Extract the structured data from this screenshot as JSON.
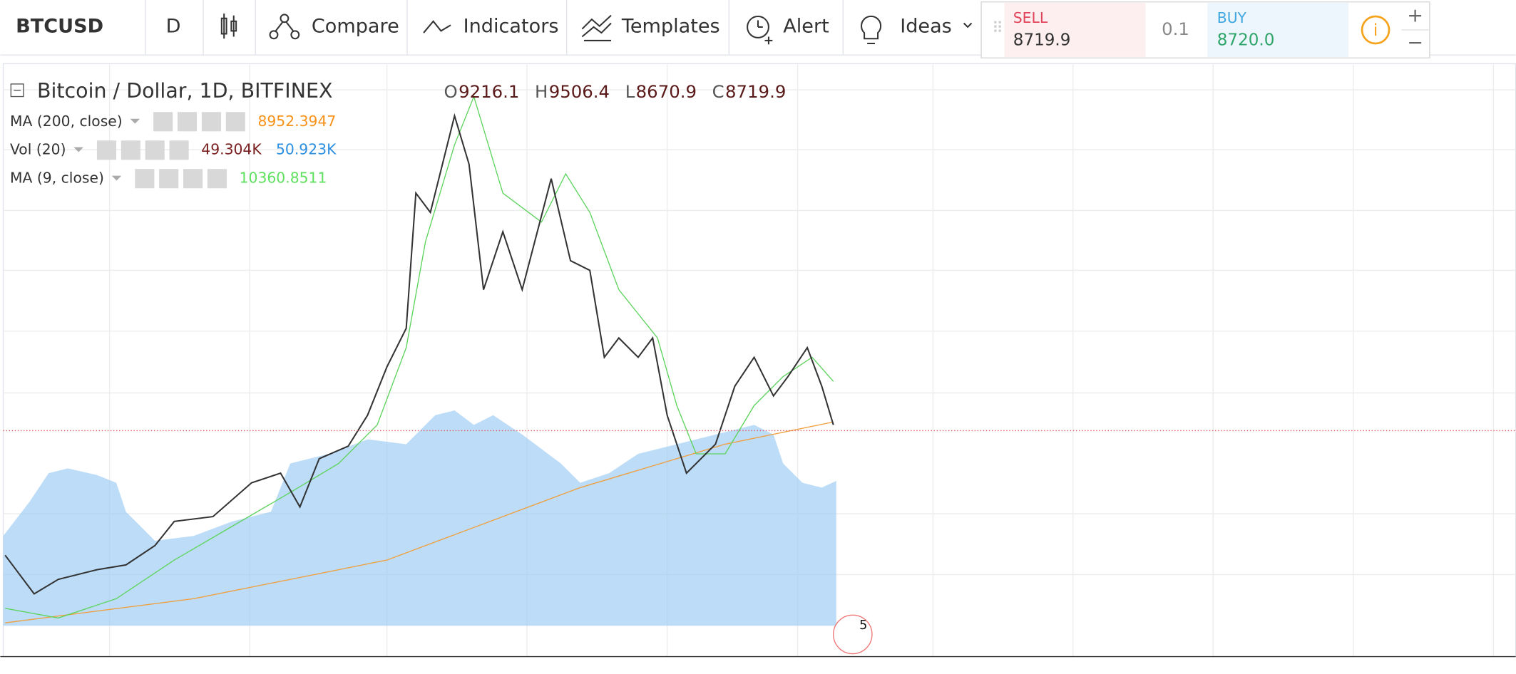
{
  "toolbar": {
    "symbol": "BTCUSD",
    "interval": "D",
    "buttons": [
      "Compare",
      "Indicators",
      "Templates",
      "Alert",
      "Ideas"
    ]
  },
  "trade": {
    "sell_label": "SELL",
    "sell_price": "8719.9",
    "quantity": "0.1",
    "buy_label": "BUY",
    "buy_price": "8720.0"
  },
  "legend": {
    "title": "Bitcoin / Dollar, 1D, BITFINEX",
    "ohlc": [
      {
        "label": "O",
        "value": "9216.1"
      },
      {
        "label": "H",
        "value": "9506.4"
      },
      {
        "label": "L",
        "value": "8670.9"
      },
      {
        "label": "C",
        "value": "8719.9"
      }
    ],
    "indicators": [
      {
        "name": "MA (200, close)",
        "values": [
          "8952.3947"
        ]
      },
      {
        "name": "Vol (20)",
        "values": [
          "49.304K",
          "50.923K"
        ]
      },
      {
        "name": "MA (9, close)",
        "values": [
          "10360.8511"
        ]
      }
    ]
  },
  "badge": "5"
}
